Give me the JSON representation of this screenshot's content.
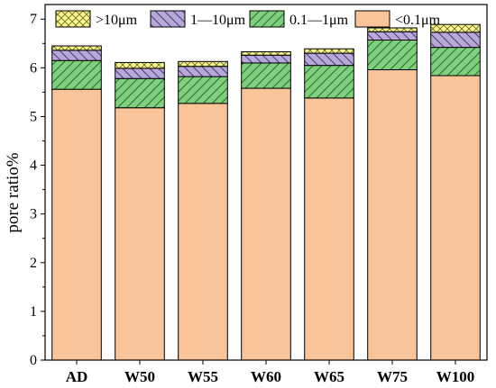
{
  "chart_data": {
    "type": "bar",
    "stacked": true,
    "categories": [
      "AD",
      "W50",
      "W55",
      "W60",
      "W65",
      "W75",
      "W100"
    ],
    "ylabel": "pore ratio%",
    "xlabel": "",
    "ylim": [
      0,
      7.3
    ],
    "yticks": [
      0,
      1,
      2,
      3,
      4,
      5,
      6,
      7
    ],
    "legend_position": "top",
    "series": [
      {
        "name": "<0.1μm",
        "color": "#f9c49a",
        "pattern": "solid",
        "values": [
          5.56,
          5.18,
          5.27,
          5.58,
          5.38,
          5.96,
          5.84
        ]
      },
      {
        "name": "0.1—1μm",
        "color": "#7ed07e",
        "pattern": "diagonal",
        "values": [
          0.59,
          0.6,
          0.55,
          0.52,
          0.67,
          0.61,
          0.58
        ]
      },
      {
        "name": "1—10μm",
        "color": "#b8a8d8",
        "pattern": "backdiagonal",
        "values": [
          0.21,
          0.21,
          0.21,
          0.16,
          0.25,
          0.17,
          0.31
        ]
      },
      {
        "name": ">10μm",
        "color": "#f6f28c",
        "pattern": "crosshatch",
        "values": [
          0.09,
          0.12,
          0.1,
          0.07,
          0.09,
          0.08,
          0.16
        ]
      }
    ]
  }
}
